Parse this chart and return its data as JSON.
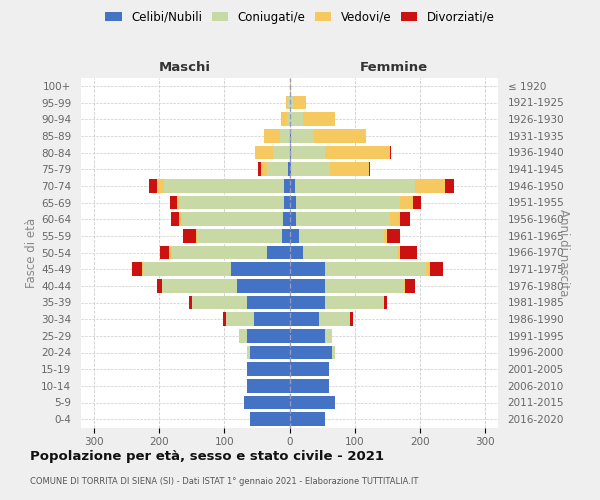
{
  "age_groups": [
    "100+",
    "95-99",
    "90-94",
    "85-89",
    "80-84",
    "75-79",
    "70-74",
    "65-69",
    "60-64",
    "55-59",
    "50-54",
    "45-49",
    "40-44",
    "35-39",
    "30-34",
    "25-29",
    "20-24",
    "15-19",
    "10-14",
    "5-9",
    "0-4"
  ],
  "birth_years": [
    "≤ 1920",
    "1921-1925",
    "1926-1930",
    "1931-1935",
    "1936-1940",
    "1941-1945",
    "1946-1950",
    "1951-1955",
    "1956-1960",
    "1961-1965",
    "1966-1970",
    "1971-1975",
    "1976-1980",
    "1981-1985",
    "1986-1990",
    "1991-1995",
    "1996-2000",
    "2001-2005",
    "2006-2010",
    "2011-2015",
    "2016-2020"
  ],
  "maschi": {
    "celibi": [
      0,
      0,
      0,
      0,
      0,
      2,
      8,
      8,
      10,
      12,
      35,
      90,
      80,
      65,
      55,
      65,
      60,
      65,
      65,
      70,
      60
    ],
    "coniugati": [
      0,
      2,
      4,
      14,
      25,
      32,
      185,
      160,
      155,
      130,
      145,
      135,
      115,
      85,
      42,
      12,
      5,
      0,
      0,
      0,
      0
    ],
    "vedovi": [
      0,
      4,
      9,
      25,
      28,
      10,
      10,
      5,
      5,
      2,
      5,
      2,
      0,
      0,
      0,
      0,
      0,
      0,
      0,
      0,
      0
    ],
    "divorziati": [
      0,
      0,
      0,
      0,
      0,
      4,
      12,
      10,
      12,
      20,
      14,
      15,
      8,
      5,
      5,
      0,
      0,
      0,
      0,
      0,
      0
    ]
  },
  "femmine": {
    "nubili": [
      0,
      0,
      0,
      2,
      2,
      2,
      8,
      10,
      10,
      15,
      20,
      55,
      55,
      55,
      45,
      55,
      65,
      60,
      60,
      70,
      55
    ],
    "coniugate": [
      1,
      5,
      20,
      35,
      52,
      60,
      185,
      160,
      145,
      130,
      145,
      155,
      120,
      90,
      48,
      10,
      5,
      0,
      0,
      0,
      0
    ],
    "vedove": [
      1,
      20,
      50,
      80,
      100,
      60,
      45,
      20,
      15,
      5,
      5,
      5,
      2,
      0,
      0,
      0,
      0,
      0,
      0,
      0,
      0
    ],
    "divorziate": [
      0,
      0,
      0,
      0,
      2,
      2,
      15,
      12,
      15,
      20,
      25,
      20,
      15,
      5,
      5,
      0,
      0,
      0,
      0,
      0,
      0
    ]
  },
  "colors": {
    "celibi": "#4472C4",
    "coniugati": "#c8d9a5",
    "vedovi": "#F5C860",
    "divorziati": "#CC1111"
  },
  "xlim": 320,
  "title": "Popolazione per età, sesso e stato civile - 2021",
  "subtitle": "COMUNE DI TORRITA DI SIENA (SI) - Dati ISTAT 1° gennaio 2021 - Elaborazione TUTTITALIA.IT",
  "legend_labels": [
    "Celibi/Nubili",
    "Coniugati/e",
    "Vedovi/e",
    "Divorziati/e"
  ],
  "ylabel_left": "Fasce di età",
  "ylabel_right": "Anni di nascita",
  "maschi_label": "Maschi",
  "femmine_label": "Femmine",
  "bg_color": "#efefef",
  "plot_bg": "#ffffff"
}
